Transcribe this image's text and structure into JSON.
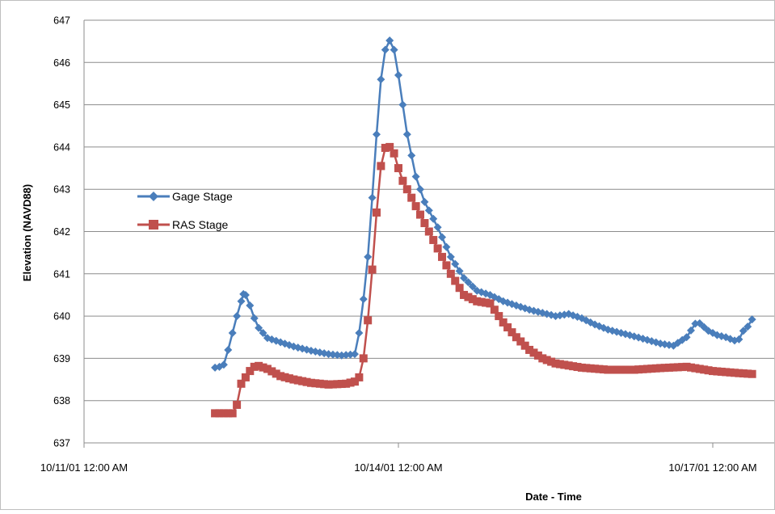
{
  "chart_data": {
    "type": "line",
    "title": "",
    "xlabel": "Date - Time",
    "ylabel": "Elevation (NAVD88)",
    "ylim": [
      637,
      647
    ],
    "yticks": [
      637,
      638,
      639,
      640,
      641,
      642,
      643,
      644,
      645,
      646,
      647
    ],
    "xlim": [
      "2001-10-11T00:00",
      "2001-10-17T09:00"
    ],
    "xticks": [
      {
        "value": "2001-10-11T00:00",
        "label": "10/11/01  12:00 AM"
      },
      {
        "value": "2001-10-14T00:00",
        "label": "10/14/01  12:00 AM"
      },
      {
        "value": "2001-10-17T00:00",
        "label": "10/17/01  12:00 AM"
      }
    ],
    "grid": "horizontal",
    "legend": "left",
    "series": [
      {
        "name": "Gage Stage",
        "color": "#4a7ebb",
        "marker": "diamond",
        "points": [
          [
            "2001-10-12T06:00",
            638.78
          ],
          [
            "2001-10-12T07:00",
            638.8
          ],
          [
            "2001-10-12T08:00",
            638.85
          ],
          [
            "2001-10-12T09:00",
            639.2
          ],
          [
            "2001-10-12T10:00",
            639.6
          ],
          [
            "2001-10-12T11:00",
            640.0
          ],
          [
            "2001-10-12T12:00",
            640.35
          ],
          [
            "2001-10-12T12:30",
            640.52
          ],
          [
            "2001-10-12T13:00",
            640.5
          ],
          [
            "2001-10-12T14:00",
            640.25
          ],
          [
            "2001-10-12T15:00",
            639.95
          ],
          [
            "2001-10-12T16:00",
            639.72
          ],
          [
            "2001-10-12T18:00",
            639.48
          ],
          [
            "2001-10-12T21:00",
            639.38
          ],
          [
            "2001-10-13T00:00",
            639.28
          ],
          [
            "2001-10-13T04:00",
            639.18
          ],
          [
            "2001-10-13T08:00",
            639.1
          ],
          [
            "2001-10-13T11:00",
            639.07
          ],
          [
            "2001-10-13T14:00",
            639.1
          ],
          [
            "2001-10-13T15:00",
            639.6
          ],
          [
            "2001-10-13T16:00",
            640.4
          ],
          [
            "2001-10-13T17:00",
            641.4
          ],
          [
            "2001-10-13T18:00",
            642.8
          ],
          [
            "2001-10-13T19:00",
            644.3
          ],
          [
            "2001-10-13T20:00",
            645.6
          ],
          [
            "2001-10-13T21:00",
            646.3
          ],
          [
            "2001-10-13T22:00",
            646.52
          ],
          [
            "2001-10-13T23:00",
            646.3
          ],
          [
            "2001-10-14T00:00",
            645.7
          ],
          [
            "2001-10-14T01:00",
            645.0
          ],
          [
            "2001-10-14T02:00",
            644.3
          ],
          [
            "2001-10-14T04:00",
            643.3
          ],
          [
            "2001-10-14T06:00",
            642.7
          ],
          [
            "2001-10-14T09:00",
            642.1
          ],
          [
            "2001-10-14T12:00",
            641.4
          ],
          [
            "2001-10-14T15:00",
            640.9
          ],
          [
            "2001-10-14T18:00",
            640.6
          ],
          [
            "2001-10-14T21:00",
            640.5
          ],
          [
            "2001-10-15T00:00",
            640.35
          ],
          [
            "2001-10-15T06:00",
            640.15
          ],
          [
            "2001-10-15T12:00",
            640.0
          ],
          [
            "2001-10-15T15:00",
            640.05
          ],
          [
            "2001-10-15T18:00",
            639.95
          ],
          [
            "2001-10-15T21:00",
            639.8
          ],
          [
            "2001-10-16T00:00",
            639.68
          ],
          [
            "2001-10-16T06:00",
            639.52
          ],
          [
            "2001-10-16T12:00",
            639.35
          ],
          [
            "2001-10-16T15:00",
            639.3
          ],
          [
            "2001-10-16T18:00",
            639.5
          ],
          [
            "2001-10-16T20:00",
            639.82
          ],
          [
            "2001-10-16T21:00",
            639.83
          ],
          [
            "2001-10-16T23:00",
            639.65
          ],
          [
            "2001-10-17T01:00",
            639.55
          ],
          [
            "2001-10-17T03:00",
            639.5
          ],
          [
            "2001-10-17T05:00",
            639.42
          ],
          [
            "2001-10-17T06:00",
            639.45
          ],
          [
            "2001-10-17T07:00",
            639.65
          ],
          [
            "2001-10-17T08:00",
            639.75
          ],
          [
            "2001-10-17T09:00",
            639.92
          ]
        ]
      },
      {
        "name": "RAS Stage",
        "color": "#c0504d",
        "marker": "square",
        "points": [
          [
            "2001-10-12T06:00",
            637.7
          ],
          [
            "2001-10-12T08:00",
            637.7
          ],
          [
            "2001-10-12T10:00",
            637.7
          ],
          [
            "2001-10-12T11:00",
            637.9
          ],
          [
            "2001-10-12T12:00",
            638.4
          ],
          [
            "2001-10-12T13:00",
            638.55
          ],
          [
            "2001-10-12T14:00",
            638.7
          ],
          [
            "2001-10-12T15:00",
            638.8
          ],
          [
            "2001-10-12T16:00",
            638.82
          ],
          [
            "2001-10-12T18:00",
            638.75
          ],
          [
            "2001-10-12T21:00",
            638.58
          ],
          [
            "2001-10-13T00:00",
            638.5
          ],
          [
            "2001-10-13T04:00",
            638.42
          ],
          [
            "2001-10-13T08:00",
            638.38
          ],
          [
            "2001-10-13T12:00",
            638.4
          ],
          [
            "2001-10-13T14:00",
            638.45
          ],
          [
            "2001-10-13T15:00",
            638.55
          ],
          [
            "2001-10-13T16:00",
            639.0
          ],
          [
            "2001-10-13T17:00",
            639.9
          ],
          [
            "2001-10-13T18:00",
            641.1
          ],
          [
            "2001-10-13T19:00",
            642.45
          ],
          [
            "2001-10-13T20:00",
            643.55
          ],
          [
            "2001-10-13T21:00",
            643.98
          ],
          [
            "2001-10-13T22:00",
            644.0
          ],
          [
            "2001-10-13T23:00",
            643.85
          ],
          [
            "2001-10-14T00:00",
            643.5
          ],
          [
            "2001-10-14T01:00",
            643.2
          ],
          [
            "2001-10-14T03:00",
            642.8
          ],
          [
            "2001-10-14T06:00",
            642.2
          ],
          [
            "2001-10-14T09:00",
            641.6
          ],
          [
            "2001-10-14T12:00",
            641.0
          ],
          [
            "2001-10-14T15:00",
            640.5
          ],
          [
            "2001-10-14T18:00",
            640.35
          ],
          [
            "2001-10-14T21:00",
            640.3
          ],
          [
            "2001-10-15T00:00",
            639.85
          ],
          [
            "2001-10-15T03:00",
            639.5
          ],
          [
            "2001-10-15T06:00",
            639.2
          ],
          [
            "2001-10-15T09:00",
            639.0
          ],
          [
            "2001-10-15T12:00",
            638.88
          ],
          [
            "2001-10-15T18:00",
            638.78
          ],
          [
            "2001-10-16T00:00",
            638.73
          ],
          [
            "2001-10-16T06:00",
            638.73
          ],
          [
            "2001-10-16T12:00",
            638.77
          ],
          [
            "2001-10-16T18:00",
            638.8
          ],
          [
            "2001-10-17T00:00",
            638.7
          ],
          [
            "2001-10-17T06:00",
            638.65
          ],
          [
            "2001-10-17T09:00",
            638.63
          ]
        ]
      }
    ]
  }
}
